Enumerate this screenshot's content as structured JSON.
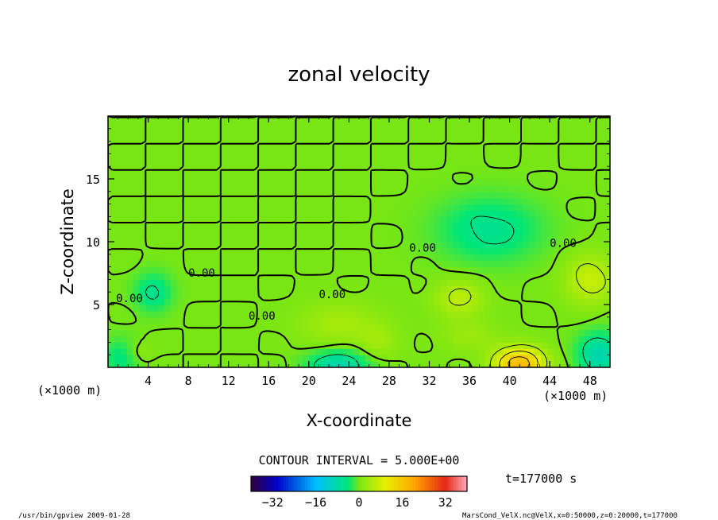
{
  "chart_data": {
    "type": "heatmap",
    "title": "zonal velocity",
    "xlabel": "X-coordinate",
    "ylabel": "Z-coordinate",
    "x_unit": "(×1000 m)",
    "y_unit": "(×1000 m)",
    "xlim": [
      0,
      50
    ],
    "ylim": [
      0,
      20
    ],
    "xticks": [
      4,
      8,
      12,
      16,
      20,
      24,
      28,
      32,
      36,
      40,
      44,
      48
    ],
    "yticks": [
      5,
      10,
      15
    ],
    "contour_interval_text": "CONTOUR INTERVAL = 5.000E+00",
    "contour_label": "0.00",
    "time_text": "t=177000 s",
    "colorbar": {
      "min": -40,
      "max": 40,
      "ticks": [
        -32,
        -16,
        0,
        16,
        32
      ],
      "colormap": "rainbow"
    },
    "anomalies": [
      {
        "x": 41,
        "z": 0.3,
        "value": 18,
        "sx": 2.5,
        "sz": 1.3
      },
      {
        "x": 23,
        "z": 0.2,
        "value": -9,
        "sx": 3,
        "sz": 1.2
      },
      {
        "x": 49,
        "z": 1.0,
        "value": -9,
        "sx": 2.2,
        "sz": 1.8
      },
      {
        "x": 1.5,
        "z": 0.8,
        "value": -5,
        "sx": 2,
        "sz": 1.5
      },
      {
        "x": 4.5,
        "z": 6,
        "value": -6,
        "sx": 1.8,
        "sz": 1.5
      },
      {
        "x": 38,
        "z": 11,
        "value": -6,
        "sx": 5,
        "sz": 2.5
      },
      {
        "x": 48,
        "z": 7,
        "value": 7,
        "sx": 2.5,
        "sz": 2
      },
      {
        "x": 35,
        "z": 5.5,
        "value": 6,
        "sx": 2.5,
        "sz": 1.5
      },
      {
        "x": 23,
        "z": 3.5,
        "value": 4,
        "sx": 4,
        "sz": 1.8
      },
      {
        "x": 27,
        "z": 2,
        "value": 3,
        "sx": 2,
        "sz": 1.5
      },
      {
        "x": 36,
        "z": 2.5,
        "value": 3,
        "sx": 3,
        "sz": 1.2
      },
      {
        "x": 3,
        "z": 1.2,
        "value": 3,
        "sx": 1.5,
        "sz": 1
      }
    ]
  },
  "footer": {
    "left": "/usr/bin/gpview  2009-01-28",
    "right": "MarsCond_VelX.nc@VelX,x=0:50000,z=0:20000,t=177000"
  }
}
